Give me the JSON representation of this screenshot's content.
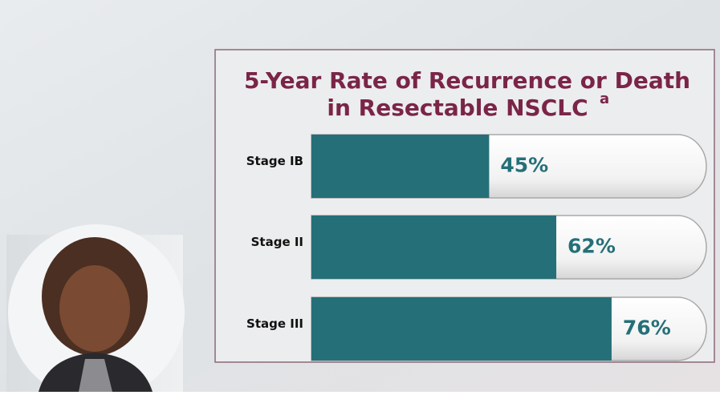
{
  "chart_data": {
    "type": "bar",
    "orientation": "horizontal",
    "title": [
      "5-Year Rate of Recurrence or Death",
      "in Resectable NSCLC"
    ],
    "title_note": "a",
    "categories": [
      "Stage IB",
      "Stage II",
      "Stage III"
    ],
    "values": [
      45,
      62,
      76
    ],
    "value_labels": [
      "45%",
      "62%",
      "76%"
    ],
    "color": "#256f78"
  }
}
